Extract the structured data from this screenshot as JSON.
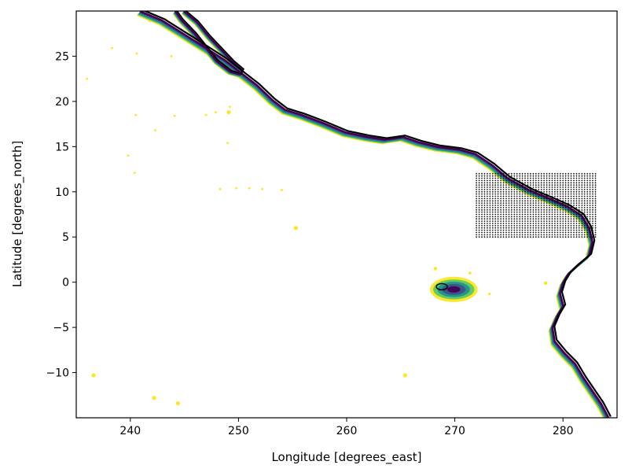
{
  "chart_data": {
    "type": "contour-map",
    "title": "",
    "xlabel": "Longitude [degrees_east]",
    "ylabel": "Latitude [degrees_north]",
    "xlim": [
      235,
      285
    ],
    "ylim": [
      -15,
      30
    ],
    "xticks": [
      240,
      250,
      260,
      270,
      280
    ],
    "yticks": [
      -10,
      -5,
      0,
      5,
      10,
      15,
      20,
      25
    ],
    "xtick_labels": [
      "240",
      "250",
      "260",
      "270",
      "280"
    ],
    "ytick_labels": [
      "−10",
      "−5",
      "0",
      "5",
      "10",
      "15",
      "20",
      "25"
    ],
    "grid": false,
    "legend": false,
    "colors": {
      "levels": [
        "#440154",
        "#3b528b",
        "#21918c",
        "#5ec962",
        "#fde725"
      ],
      "grid_points": "#000000",
      "coast": "#000000"
    },
    "coastline": [
      [
        241.0,
        30.0
      ],
      [
        243.0,
        29.0
      ],
      [
        245.0,
        27.5
      ],
      [
        247.0,
        26.0
      ],
      [
        248.8,
        24.6
      ],
      [
        250.3,
        23.2
      ],
      [
        251.8,
        21.8
      ],
      [
        253.2,
        20.2
      ],
      [
        254.4,
        19.1
      ],
      [
        256.0,
        18.5
      ],
      [
        258.0,
        17.6
      ],
      [
        260.0,
        16.6
      ],
      [
        262.0,
        16.1
      ],
      [
        263.6,
        15.8
      ],
      [
        265.3,
        16.1
      ],
      [
        266.8,
        15.5
      ],
      [
        268.5,
        15.0
      ],
      [
        270.5,
        14.7
      ],
      [
        272.0,
        14.2
      ],
      [
        273.5,
        13.0
      ],
      [
        275.0,
        11.5
      ],
      [
        277.0,
        10.2
      ],
      [
        279.0,
        9.2
      ],
      [
        280.5,
        8.4
      ],
      [
        281.8,
        7.4
      ],
      [
        282.5,
        6.0
      ],
      [
        282.8,
        4.5
      ],
      [
        282.5,
        3.0
      ],
      [
        281.5,
        2.0
      ],
      [
        280.6,
        1.0
      ],
      [
        280.1,
        0.0
      ],
      [
        279.8,
        -1.2
      ],
      [
        280.1,
        -2.6
      ],
      [
        279.6,
        -3.6
      ],
      [
        279.1,
        -5.0
      ],
      [
        279.3,
        -6.5
      ],
      [
        280.2,
        -7.8
      ],
      [
        281.2,
        -9.0
      ],
      [
        282.0,
        -10.6
      ],
      [
        282.8,
        -12.0
      ],
      [
        283.6,
        -13.4
      ],
      [
        284.3,
        -15.0
      ]
    ],
    "peninsula": [
      [
        245.0,
        30.0
      ],
      [
        246.2,
        28.8
      ],
      [
        247.3,
        27.2
      ],
      [
        248.4,
        25.8
      ],
      [
        249.5,
        24.4
      ],
      [
        250.4,
        23.5
      ],
      [
        250.2,
        23.0
      ],
      [
        249.3,
        23.3
      ],
      [
        248.0,
        24.5
      ],
      [
        247.0,
        26.0
      ],
      [
        246.0,
        27.5
      ],
      [
        244.8,
        29.0
      ],
      [
        244.2,
        30.0
      ]
    ],
    "level_offsets_km_scale": [
      0.0,
      0.35,
      0.7,
      1.05,
      1.4
    ],
    "galapagos": {
      "center": [
        269.5,
        -0.7
      ],
      "extent": [
        2.6,
        1.0
      ]
    },
    "islands": [
      [
        241.8,
        29.0
      ],
      [
        249.1,
        18.8
      ],
      [
        255.3,
        6.0
      ],
      [
        236.6,
        -10.3
      ],
      [
        242.2,
        -12.8
      ],
      [
        244.4,
        -13.4
      ],
      [
        265.4,
        -10.3
      ]
    ],
    "scatter_box": {
      "xlim": [
        272.0,
        283.0
      ],
      "ylim": [
        5.0,
        12.0
      ],
      "step": 0.25
    }
  }
}
